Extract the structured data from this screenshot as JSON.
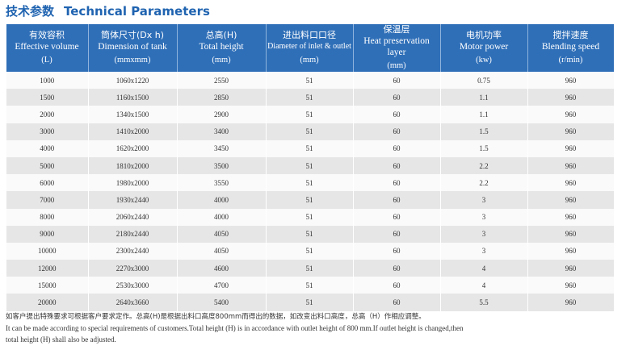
{
  "header": {
    "title_cn": "技术参数",
    "title_en": "Technical Parameters"
  },
  "table": {
    "columns": [
      {
        "cn": "有效容积",
        "en": "Effective volume",
        "unit": "(L)"
      },
      {
        "cn": "筒体尺寸(Dx h)",
        "en": "Dimension of tank",
        "unit": "(mmxmm)"
      },
      {
        "cn": "总高(H)",
        "en": "Total height",
        "unit": "(mm)"
      },
      {
        "cn": "进出料口口径",
        "en": "Diameter of inlet & outlet",
        "unit": "(mm)"
      },
      {
        "cn": "保温层",
        "en": "Heat preservation layer",
        "unit": "(mm)"
      },
      {
        "cn": "电机功率",
        "en": "Motor power",
        "unit": "(kw)"
      },
      {
        "cn": "搅拌速度",
        "en": "Blending speed",
        "unit": "(r/min)"
      }
    ],
    "rows": [
      [
        "1000",
        "1060x1220",
        "2550",
        "51",
        "60",
        "0.75",
        "960"
      ],
      [
        "1500",
        "1160x1500",
        "2850",
        "51",
        "60",
        "1.1",
        "960"
      ],
      [
        "2000",
        "1340x1500",
        "2900",
        "51",
        "60",
        "1.1",
        "960"
      ],
      [
        "3000",
        "1410x2000",
        "3400",
        "51",
        "60",
        "1.5",
        "960"
      ],
      [
        "4000",
        "1620x2000",
        "3450",
        "51",
        "60",
        "1.5",
        "960"
      ],
      [
        "5000",
        "1810x2000",
        "3500",
        "51",
        "60",
        "2.2",
        "960"
      ],
      [
        "6000",
        "1980x2000",
        "3550",
        "51",
        "60",
        "2.2",
        "960"
      ],
      [
        "7000",
        "1930x2440",
        "4000",
        "51",
        "60",
        "3",
        "960"
      ],
      [
        "8000",
        "2060x2440",
        "4000",
        "51",
        "60",
        "3",
        "960"
      ],
      [
        "9000",
        "2180x2440",
        "4050",
        "51",
        "60",
        "3",
        "960"
      ],
      [
        "10000",
        "2300x2440",
        "4050",
        "51",
        "60",
        "3",
        "960"
      ],
      [
        "12000",
        "2270x3000",
        "4600",
        "51",
        "60",
        "4",
        "960"
      ],
      [
        "15000",
        "2530x3000",
        "4700",
        "51",
        "60",
        "4",
        "960"
      ],
      [
        "20000",
        "2640x3660",
        "5400",
        "51",
        "60",
        "5.5",
        "960"
      ]
    ]
  },
  "notes": [
    "如客户提出特殊要求可根据客户要求定作。总高(H)是根据出料口高度800mm而得出的数据，如改变出料口高度，总高（H）作相应调整。",
    "It can be made according to special requirements of customers.Total height (H) is in accordance with outlet height of 800 mm.If outlet height is changed,then",
    "total height (H) shall also be adjusted."
  ]
}
